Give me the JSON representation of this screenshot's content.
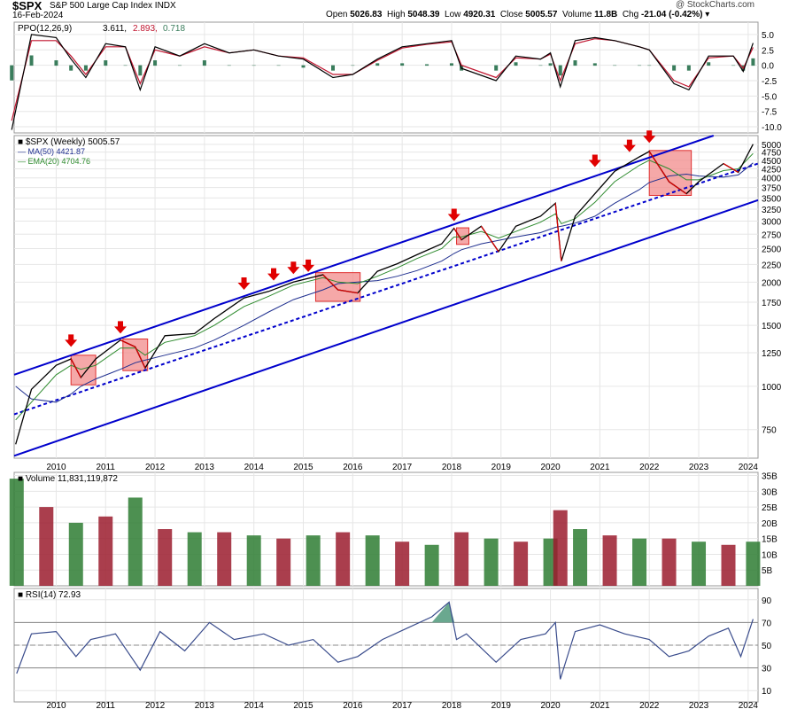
{
  "header": {
    "symbol": "$SPX",
    "description": "S&P 500 Large Cap Index",
    "exchange": "INDX",
    "date": "16-Feb-2024",
    "open_label": "Open",
    "open": "5026.83",
    "high_label": "High",
    "high": "5048.39",
    "low_label": "Low",
    "low": "4920.31",
    "close_label": "Close",
    "close": "5005.57",
    "volume_label": "Volume",
    "volume": "11.8B",
    "chg_label": "Chg",
    "chg": "-21.04 (-0.42%)",
    "watermark": "@ StockCharts.com"
  },
  "colors": {
    "up": "#000000",
    "down": "#d20000",
    "channel": "#0000cc",
    "highlight_fill": "#f28b8b",
    "highlight_stroke": "#e03030",
    "arrow": "#e00000",
    "ma50": "#1f2f8f",
    "ema20": "#2e8b2e",
    "volume_up": "#2e7d32",
    "volume_down": "#9b1c2e",
    "ppo_line": "#000000",
    "ppo_signal": "#c0152f",
    "ppo_hist": "#3a7d5c",
    "rsi_line": "#3a4c8c",
    "rsi_fill": "#6aa88f"
  },
  "chart_data": [
    {
      "type": "line",
      "title": "PPO(12,26,9) 3.611, 2.893, 0.718",
      "legend": [
        "PPO(12,26,9)",
        "3.611",
        "2.893",
        "0.718"
      ],
      "y_ticks": [
        "5.0",
        "2.5",
        "0.0",
        "-2.5",
        "-5.0",
        "-7.5",
        "-10.0"
      ],
      "ylim": [
        -11,
        7
      ],
      "x": [
        2009.1,
        2009.5,
        2010.0,
        2010.3,
        2010.6,
        2011.0,
        2011.4,
        2011.7,
        2012.0,
        2012.5,
        2013.0,
        2013.5,
        2014.0,
        2014.5,
        2015.0,
        2015.6,
        2016.0,
        2016.5,
        2017.0,
        2017.5,
        2018.0,
        2018.2,
        2018.9,
        2019.3,
        2019.8,
        2020.0,
        2020.2,
        2020.5,
        2020.9,
        2021.3,
        2021.8,
        2022.0,
        2022.5,
        2022.8,
        2023.2,
        2023.7,
        2023.9,
        2024.1
      ],
      "series": [
        {
          "name": "PPO",
          "values": [
            -10.5,
            5.0,
            4.5,
            1.0,
            -2.0,
            3.5,
            3.0,
            -4.0,
            3.0,
            1.5,
            3.5,
            2.0,
            2.5,
            1.5,
            1.0,
            -2.0,
            -1.5,
            1.0,
            3.0,
            3.5,
            4.0,
            -0.5,
            -2.5,
            1.5,
            1.0,
            2.0,
            -3.5,
            4.0,
            4.5,
            4.0,
            3.0,
            2.5,
            -3.0,
            -4.0,
            1.5,
            1.5,
            -1.0,
            3.6
          ]
        },
        {
          "name": "Signal",
          "values": [
            -9.0,
            4.0,
            4.0,
            1.5,
            -1.5,
            3.0,
            3.0,
            -3.0,
            2.5,
            1.5,
            3.0,
            2.0,
            2.5,
            1.5,
            1.2,
            -1.5,
            -1.5,
            0.8,
            2.8,
            3.4,
            3.8,
            0.0,
            -2.0,
            1.2,
            1.0,
            1.8,
            -2.5,
            3.5,
            4.3,
            4.0,
            3.0,
            2.5,
            -2.5,
            -3.5,
            1.2,
            1.5,
            -0.5,
            2.9
          ]
        }
      ]
    },
    {
      "type": "line",
      "title": "$SPX (Weekly) 5005.57",
      "legend": [
        {
          "name": "$SPX (Weekly)",
          "value": "5005.57"
        },
        {
          "name": "MA(50)",
          "value": "4421.87"
        },
        {
          "name": "EMA(20)",
          "value": "4704.76"
        }
      ],
      "scale": "log",
      "ylim": [
        620,
        5300
      ],
      "y_ticks": [
        "5000",
        "4750",
        "4500",
        "4250",
        "4000",
        "3750",
        "3500",
        "3250",
        "3000",
        "2750",
        "2500",
        "2250",
        "2000",
        "1750",
        "1500",
        "1250",
        "1000",
        "750"
      ],
      "x_ticks": [
        "2010",
        "2011",
        "2012",
        "2013",
        "2014",
        "2015",
        "2016",
        "2017",
        "2018",
        "2019",
        "2020",
        "2021",
        "2022",
        "2023",
        "2024"
      ],
      "xlim": [
        2009.15,
        2024.2
      ],
      "x": [
        2009.18,
        2009.5,
        2010.0,
        2010.3,
        2010.5,
        2010.8,
        2011.3,
        2011.6,
        2011.8,
        2012.2,
        2012.8,
        2013.2,
        2013.8,
        2014.3,
        2014.8,
        2015.4,
        2015.7,
        2016.1,
        2016.5,
        2016.9,
        2017.3,
        2017.8,
        2018.05,
        2018.2,
        2018.6,
        2018.95,
        2019.3,
        2019.8,
        2020.1,
        2020.22,
        2020.5,
        2020.9,
        2021.3,
        2021.8,
        2022.0,
        2022.4,
        2022.75,
        2023.0,
        2023.5,
        2023.8,
        2024.1
      ],
      "series": [
        {
          "name": "$SPX (Weekly)",
          "values": [
            680,
            980,
            1150,
            1200,
            1060,
            1200,
            1360,
            1300,
            1130,
            1400,
            1420,
            1570,
            1800,
            1880,
            2000,
            2100,
            1900,
            1860,
            2150,
            2260,
            2400,
            2580,
            2860,
            2650,
            2900,
            2450,
            2900,
            3100,
            3380,
            2300,
            3100,
            3600,
            4180,
            4600,
            4770,
            3900,
            3600,
            3900,
            4400,
            4150,
            5005
          ]
        },
        {
          "name": "MA(50)",
          "values": [
            1000,
            920,
            900,
            950,
            1000,
            1050,
            1120,
            1170,
            1190,
            1230,
            1290,
            1360,
            1500,
            1640,
            1780,
            1900,
            1980,
            2000,
            2020,
            2080,
            2160,
            2300,
            2420,
            2480,
            2580,
            2640,
            2700,
            2780,
            2880,
            2900,
            2960,
            3100,
            3380,
            3700,
            3880,
            4050,
            4100,
            4050,
            4020,
            4080,
            4420
          ]
        },
        {
          "name": "EMA(20)",
          "values": [
            800,
            900,
            1080,
            1150,
            1120,
            1150,
            1290,
            1290,
            1230,
            1340,
            1400,
            1500,
            1700,
            1820,
            1960,
            2060,
            2000,
            1980,
            2080,
            2200,
            2340,
            2500,
            2700,
            2700,
            2800,
            2680,
            2800,
            2980,
            3150,
            2950,
            3050,
            3400,
            3900,
            4350,
            4500,
            4250,
            3950,
            3950,
            4200,
            4250,
            4705
          ]
        }
      ],
      "channel_lines": [
        {
          "style": "solid",
          "points": [
            [
              2009.15,
              1080
            ],
            [
              2023.3,
              5300
            ]
          ]
        },
        {
          "style": "dashed",
          "points": [
            [
              2009.15,
              830
            ],
            [
              2024.2,
              4400
            ]
          ]
        },
        {
          "style": "solid",
          "points": [
            [
              2009.15,
              630
            ],
            [
              2024.2,
              3450
            ]
          ]
        }
      ],
      "arrows_at": [
        [
          2010.3,
          1300
        ],
        [
          2011.3,
          1420
        ],
        [
          2013.8,
          1900
        ],
        [
          2014.4,
          2020
        ],
        [
          2014.8,
          2110
        ],
        [
          2015.1,
          2140
        ],
        [
          2018.05,
          3000
        ],
        [
          2020.9,
          4300
        ],
        [
          2021.6,
          4750
        ],
        [
          2022.0,
          5050
        ]
      ],
      "highlight_boxes": [
        {
          "x0": 2010.3,
          "x1": 2010.8,
          "y0": 1010,
          "y1": 1230
        },
        {
          "x0": 2011.35,
          "x1": 2011.85,
          "y0": 1110,
          "y1": 1370
        },
        {
          "x0": 2015.25,
          "x1": 2016.15,
          "y0": 1760,
          "y1": 2130
        },
        {
          "x0": 2018.1,
          "x1": 2018.35,
          "y0": 2570,
          "y1": 2870
        },
        {
          "x0": 2022.0,
          "x1": 2022.85,
          "y0": 3560,
          "y1": 4800
        }
      ]
    },
    {
      "type": "bar",
      "title": "Volume 11,831,119,872",
      "legend": [
        "Volume",
        "11,831,119,872"
      ],
      "y_ticks": [
        "35B",
        "30B",
        "25B",
        "20B",
        "15B",
        "10B",
        "5B"
      ],
      "ylim": [
        0,
        36
      ],
      "x": [
        2009.2,
        2009.8,
        2010.4,
        2011.0,
        2011.6,
        2012.2,
        2012.8,
        2013.4,
        2014.0,
        2014.6,
        2015.2,
        2015.8,
        2016.4,
        2017.0,
        2017.6,
        2018.2,
        2018.8,
        2019.4,
        2020.0,
        2020.2,
        2020.6,
        2021.2,
        2021.8,
        2022.4,
        2023.0,
        2023.6,
        2024.1
      ],
      "values": [
        34,
        25,
        20,
        22,
        28,
        18,
        17,
        17,
        16,
        15,
        16,
        17,
        16,
        14,
        13,
        17,
        15,
        14,
        15,
        24,
        18,
        16,
        15,
        15,
        14,
        13,
        14
      ]
    },
    {
      "type": "line",
      "title": "RSI(14) 72.93",
      "legend": [
        "RSI(14)",
        "72.93"
      ],
      "y_ticks": [
        "90",
        "70",
        "50",
        "30",
        "10"
      ],
      "ylim": [
        0,
        100
      ],
      "reference_lines": [
        70,
        50,
        30
      ],
      "x": [
        2009.2,
        2009.5,
        2010.0,
        2010.4,
        2010.7,
        2011.2,
        2011.7,
        2012.1,
        2012.6,
        2013.1,
        2013.6,
        2014.2,
        2014.7,
        2015.2,
        2015.7,
        2016.1,
        2016.6,
        2017.1,
        2017.6,
        2017.95,
        2018.1,
        2018.3,
        2018.9,
        2019.4,
        2019.9,
        2020.1,
        2020.2,
        2020.5,
        2021.0,
        2021.5,
        2022.0,
        2022.4,
        2022.8,
        2023.2,
        2023.6,
        2023.85,
        2024.1
      ],
      "values": [
        25,
        60,
        62,
        40,
        55,
        60,
        28,
        62,
        45,
        70,
        55,
        60,
        50,
        55,
        35,
        40,
        55,
        65,
        75,
        88,
        55,
        60,
        35,
        55,
        60,
        70,
        20,
        62,
        68,
        60,
        55,
        40,
        45,
        58,
        65,
        40,
        73
      ]
    }
  ]
}
